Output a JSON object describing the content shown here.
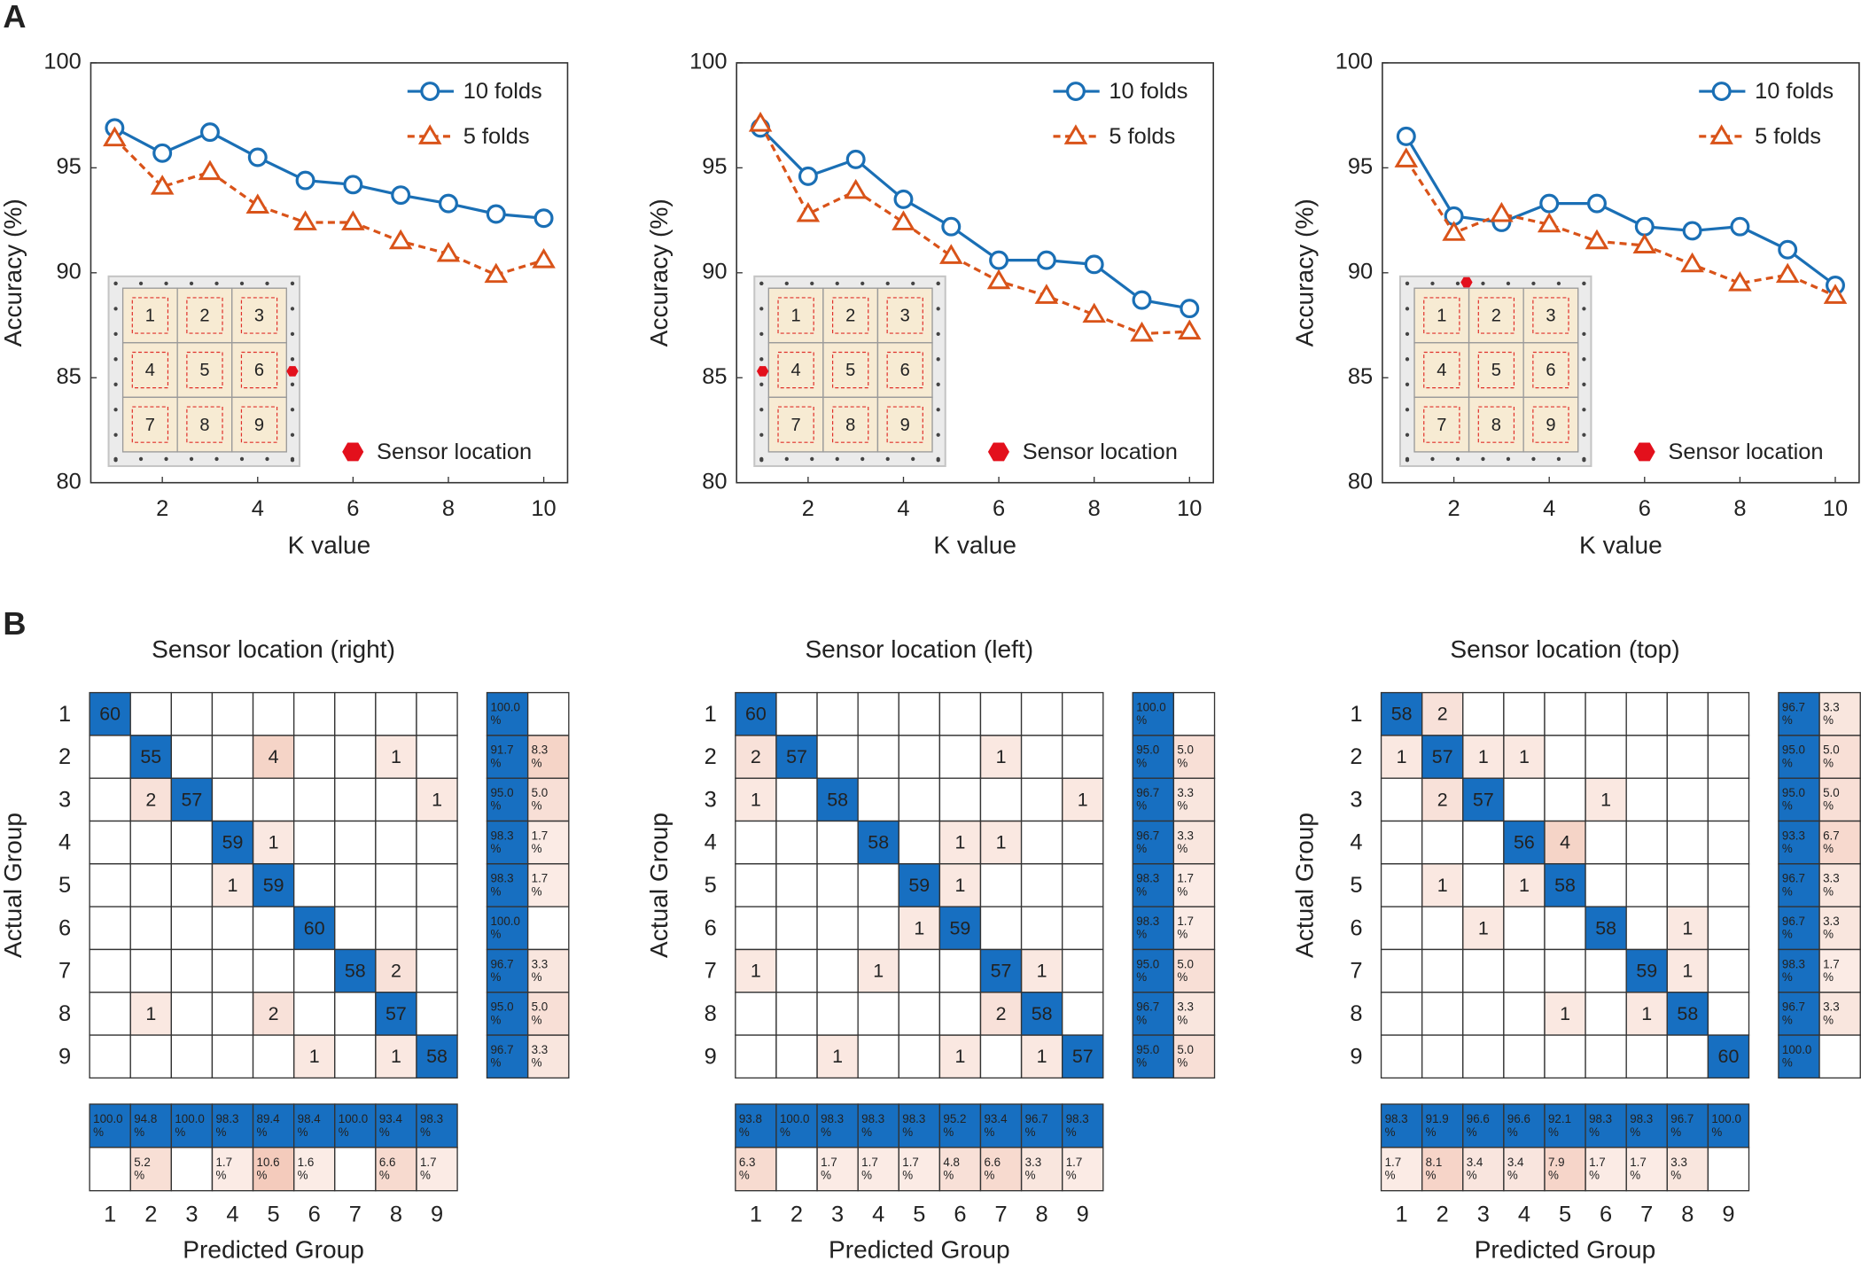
{
  "panel_labels": [
    "A",
    "B"
  ],
  "chart_data": [
    {
      "type": "line",
      "sensor_position": "right",
      "xlabel": "K value",
      "ylabel": "Accuracy (%)",
      "x": [
        1,
        2,
        3,
        4,
        5,
        6,
        7,
        8,
        9,
        10
      ],
      "xlim": [
        0.5,
        10.5
      ],
      "xticks": [
        2,
        4,
        6,
        8,
        10
      ],
      "ylim": [
        80,
        100
      ],
      "yticks": [
        80,
        85,
        90,
        95,
        100
      ],
      "legend_position": "upper right",
      "inset_labels": [
        "1",
        "2",
        "3",
        "4",
        "5",
        "6",
        "7",
        "8",
        "9"
      ],
      "sensor_label": "Sensor location",
      "sensor_color": "#e3101c",
      "series": [
        {
          "name": "10 folds",
          "color": "#1a6fb5",
          "marker": "circle",
          "dashed": false,
          "values": [
            96.9,
            95.7,
            96.7,
            95.5,
            94.4,
            94.2,
            93.7,
            93.3,
            92.8,
            92.6
          ]
        },
        {
          "name": "5 folds",
          "color": "#d95319",
          "marker": "triangle",
          "dashed": true,
          "values": [
            96.4,
            94.1,
            94.8,
            93.2,
            92.4,
            92.4,
            91.5,
            90.9,
            89.9,
            90.6
          ]
        }
      ]
    },
    {
      "type": "line",
      "sensor_position": "left",
      "xlabel": "K value",
      "ylabel": "Accuracy (%)",
      "x": [
        1,
        2,
        3,
        4,
        5,
        6,
        7,
        8,
        9,
        10
      ],
      "xlim": [
        0.5,
        10.5
      ],
      "xticks": [
        2,
        4,
        6,
        8,
        10
      ],
      "ylim": [
        80,
        100
      ],
      "yticks": [
        80,
        85,
        90,
        95,
        100
      ],
      "legend_position": "upper right",
      "inset_labels": [
        "1",
        "2",
        "3",
        "4",
        "5",
        "6",
        "7",
        "8",
        "9"
      ],
      "sensor_label": "Sensor location",
      "sensor_color": "#e3101c",
      "series": [
        {
          "name": "10 folds",
          "color": "#1a6fb5",
          "marker": "circle",
          "dashed": false,
          "values": [
            96.9,
            94.6,
            95.4,
            93.5,
            92.2,
            90.6,
            90.6,
            90.4,
            88.7,
            88.3
          ]
        },
        {
          "name": "5 folds",
          "color": "#d95319",
          "marker": "triangle",
          "dashed": true,
          "values": [
            97.1,
            92.8,
            93.9,
            92.4,
            90.8,
            89.6,
            88.9,
            88.0,
            87.1,
            87.2
          ]
        }
      ]
    },
    {
      "type": "line",
      "sensor_position": "top",
      "xlabel": "K value",
      "ylabel": "Accuracy (%)",
      "x": [
        1,
        2,
        3,
        4,
        5,
        6,
        7,
        8,
        9,
        10
      ],
      "xlim": [
        0.5,
        10.5
      ],
      "xticks": [
        2,
        4,
        6,
        8,
        10
      ],
      "ylim": [
        80,
        100
      ],
      "yticks": [
        80,
        85,
        90,
        95,
        100
      ],
      "legend_position": "upper right",
      "inset_labels": [
        "1",
        "2",
        "3",
        "4",
        "5",
        "6",
        "7",
        "8",
        "9"
      ],
      "sensor_label": "Sensor location",
      "sensor_color": "#e3101c",
      "series": [
        {
          "name": "10 folds",
          "color": "#1a6fb5",
          "marker": "circle",
          "dashed": false,
          "values": [
            96.5,
            92.7,
            92.4,
            93.3,
            93.3,
            92.2,
            92.0,
            92.2,
            91.1,
            89.4
          ]
        },
        {
          "name": "5 folds",
          "color": "#d95319",
          "marker": "triangle",
          "dashed": true,
          "values": [
            95.4,
            91.9,
            92.8,
            92.3,
            91.5,
            91.3,
            90.4,
            89.5,
            89.9,
            88.9
          ]
        }
      ]
    },
    {
      "type": "confusion_matrix",
      "title": "Sensor location (right)",
      "xlabel": "Predicted Group",
      "ylabel": "Actual Group",
      "categories": [
        1,
        2,
        3,
        4,
        5,
        6,
        7,
        8,
        9
      ],
      "diag_color": "#176fc1",
      "off_color": "#f3c9b9",
      "matrix": [
        [
          60,
          null,
          null,
          null,
          null,
          null,
          null,
          null,
          null
        ],
        [
          null,
          55,
          null,
          null,
          4,
          null,
          null,
          1,
          null
        ],
        [
          null,
          2,
          57,
          null,
          null,
          null,
          null,
          null,
          1
        ],
        [
          null,
          null,
          null,
          59,
          1,
          null,
          null,
          null,
          null
        ],
        [
          null,
          null,
          null,
          1,
          59,
          null,
          null,
          null,
          null
        ],
        [
          null,
          null,
          null,
          null,
          null,
          60,
          null,
          null,
          null
        ],
        [
          null,
          null,
          null,
          null,
          null,
          null,
          58,
          2,
          null
        ],
        [
          null,
          1,
          null,
          null,
          2,
          null,
          null,
          57,
          null
        ],
        [
          null,
          null,
          null,
          null,
          null,
          1,
          null,
          1,
          58
        ]
      ],
      "row_summary": {
        "correct": {
          "values": [
            100,
            91.7,
            95,
            98.3,
            98.3,
            100,
            96.7,
            95,
            96.7
          ],
          "value_labels": [
            "100.0\n%",
            "91.7\n%",
            "95.0\n%",
            "98.3\n%",
            "98.3\n%",
            "100.0\n%",
            "96.7\n%",
            "95.0\n%",
            "96.7\n%"
          ]
        },
        "error": {
          "values": [
            null,
            8.3,
            5,
            1.7,
            1.7,
            null,
            3.3,
            5,
            3.3
          ],
          "value_labels": [
            null,
            "8.3\n%",
            "5.0\n%",
            "1.7\n%",
            "1.7\n%",
            null,
            "3.3\n%",
            "5.0\n%",
            "3.3\n%"
          ]
        }
      },
      "col_summary": {
        "correct": {
          "values": [
            100,
            94.8,
            100,
            98.3,
            89.4,
            98.4,
            100,
            93.4,
            98.3
          ],
          "value_labels": [
            "100.0\n%",
            "94.8\n%",
            "100.0\n%",
            "98.3\n%",
            "89.4\n%",
            "98.4\n%",
            "100.0\n%",
            "93.4\n%",
            "98.3\n%"
          ]
        },
        "error": {
          "values": [
            null,
            5.2,
            null,
            1.7,
            10.6,
            1.6,
            null,
            6.6,
            1.7
          ],
          "value_labels": [
            null,
            "5.2\n%",
            null,
            "1.7\n%",
            "10.6\n%",
            "1.6\n%",
            null,
            "6.6\n%",
            "1.7\n%"
          ]
        }
      }
    },
    {
      "type": "confusion_matrix",
      "title": "Sensor location (left)",
      "xlabel": "Predicted Group",
      "ylabel": "Actual Group",
      "categories": [
        1,
        2,
        3,
        4,
        5,
        6,
        7,
        8,
        9
      ],
      "diag_color": "#176fc1",
      "off_color": "#f3c9b9",
      "matrix": [
        [
          60,
          null,
          null,
          null,
          null,
          null,
          null,
          null,
          null
        ],
        [
          2,
          57,
          null,
          null,
          null,
          null,
          1,
          null,
          null
        ],
        [
          1,
          null,
          58,
          null,
          null,
          null,
          null,
          null,
          1
        ],
        [
          null,
          null,
          null,
          58,
          null,
          1,
          1,
          null,
          null
        ],
        [
          null,
          null,
          null,
          null,
          59,
          1,
          null,
          null,
          null
        ],
        [
          null,
          null,
          null,
          null,
          1,
          59,
          null,
          null,
          null
        ],
        [
          1,
          null,
          null,
          1,
          null,
          null,
          57,
          1,
          null
        ],
        [
          null,
          null,
          null,
          null,
          null,
          null,
          2,
          58,
          null
        ],
        [
          null,
          null,
          1,
          null,
          null,
          1,
          null,
          1,
          57
        ]
      ],
      "row_summary": {
        "correct": {
          "values": [
            100,
            95,
            96.7,
            96.7,
            98.3,
            98.3,
            95,
            96.7,
            95
          ],
          "value_labels": [
            "100.0\n%",
            "95.0\n%",
            "96.7\n%",
            "96.7\n%",
            "98.3\n%",
            "98.3\n%",
            "95.0\n%",
            "96.7\n%",
            "95.0\n%"
          ]
        },
        "error": {
          "values": [
            null,
            5,
            3.3,
            3.3,
            1.7,
            1.7,
            5,
            3.3,
            5
          ],
          "value_labels": [
            null,
            "5.0\n%",
            "3.3\n%",
            "3.3\n%",
            "1.7\n%",
            "1.7\n%",
            "5.0\n%",
            "3.3\n%",
            "5.0\n%"
          ]
        }
      },
      "col_summary": {
        "correct": {
          "values": [
            93.8,
            100,
            98.3,
            98.3,
            98.3,
            95.2,
            93.4,
            96.7,
            98.3
          ],
          "value_labels": [
            "93.8\n%",
            "100.0\n%",
            "98.3\n%",
            "98.3\n%",
            "98.3\n%",
            "95.2\n%",
            "93.4\n%",
            "96.7\n%",
            "98.3\n%"
          ]
        },
        "error": {
          "values": [
            6.3,
            null,
            1.7,
            1.7,
            1.7,
            4.8,
            6.6,
            3.3,
            1.7
          ],
          "value_labels": [
            "6.3\n%",
            null,
            "1.7\n%",
            "1.7\n%",
            "1.7\n%",
            "4.8\n%",
            "6.6\n%",
            "3.3\n%",
            "1.7\n%"
          ]
        }
      }
    },
    {
      "type": "confusion_matrix",
      "title": "Sensor location (top)",
      "xlabel": "Predicted Group",
      "ylabel": "Actual Group",
      "categories": [
        1,
        2,
        3,
        4,
        5,
        6,
        7,
        8,
        9
      ],
      "diag_color": "#176fc1",
      "off_color": "#f3c9b9",
      "matrix": [
        [
          58,
          2,
          null,
          null,
          null,
          null,
          null,
          null,
          null
        ],
        [
          1,
          57,
          1,
          1,
          null,
          null,
          null,
          null,
          null
        ],
        [
          null,
          2,
          57,
          null,
          null,
          1,
          null,
          null,
          null
        ],
        [
          null,
          null,
          null,
          56,
          4,
          null,
          null,
          null,
          null
        ],
        [
          null,
          1,
          null,
          1,
          58,
          null,
          null,
          null,
          null
        ],
        [
          null,
          null,
          1,
          null,
          null,
          58,
          null,
          1,
          null
        ],
        [
          null,
          null,
          null,
          null,
          null,
          null,
          59,
          1,
          null
        ],
        [
          null,
          null,
          null,
          null,
          1,
          null,
          1,
          58,
          null
        ],
        [
          null,
          null,
          null,
          null,
          null,
          null,
          null,
          null,
          60
        ]
      ],
      "row_summary": {
        "correct": {
          "values": [
            96.7,
            95,
            95,
            93.3,
            96.7,
            96.7,
            98.3,
            96.7,
            100
          ],
          "value_labels": [
            "96.7\n%",
            "95.0\n%",
            "95.0\n%",
            "93.3\n%",
            "96.7\n%",
            "96.7\n%",
            "98.3\n%",
            "96.7\n%",
            "100.0\n%"
          ]
        },
        "error": {
          "values": [
            3.3,
            5,
            5,
            6.7,
            3.3,
            3.3,
            1.7,
            3.3,
            null
          ],
          "value_labels": [
            "3.3\n%",
            "5.0\n%",
            "5.0\n%",
            "6.7\n%",
            "3.3\n%",
            "3.3\n%",
            "1.7\n%",
            "3.3\n%",
            null
          ]
        }
      },
      "col_summary": {
        "correct": {
          "values": [
            98.3,
            91.9,
            96.6,
            96.6,
            92.1,
            98.3,
            98.3,
            96.7,
            100
          ],
          "value_labels": [
            "98.3\n%",
            "91.9\n%",
            "96.6\n%",
            "96.6\n%",
            "92.1\n%",
            "98.3\n%",
            "98.3\n%",
            "96.7\n%",
            "100.0\n%"
          ]
        },
        "error": {
          "values": [
            1.7,
            8.1,
            3.4,
            3.4,
            7.9,
            1.7,
            1.7,
            3.3,
            null
          ],
          "value_labels": [
            "1.7\n%",
            "8.1\n%",
            "3.4\n%",
            "3.4\n%",
            "7.9\n%",
            "1.7\n%",
            "1.7\n%",
            "3.3\n%",
            null
          ]
        }
      }
    }
  ]
}
